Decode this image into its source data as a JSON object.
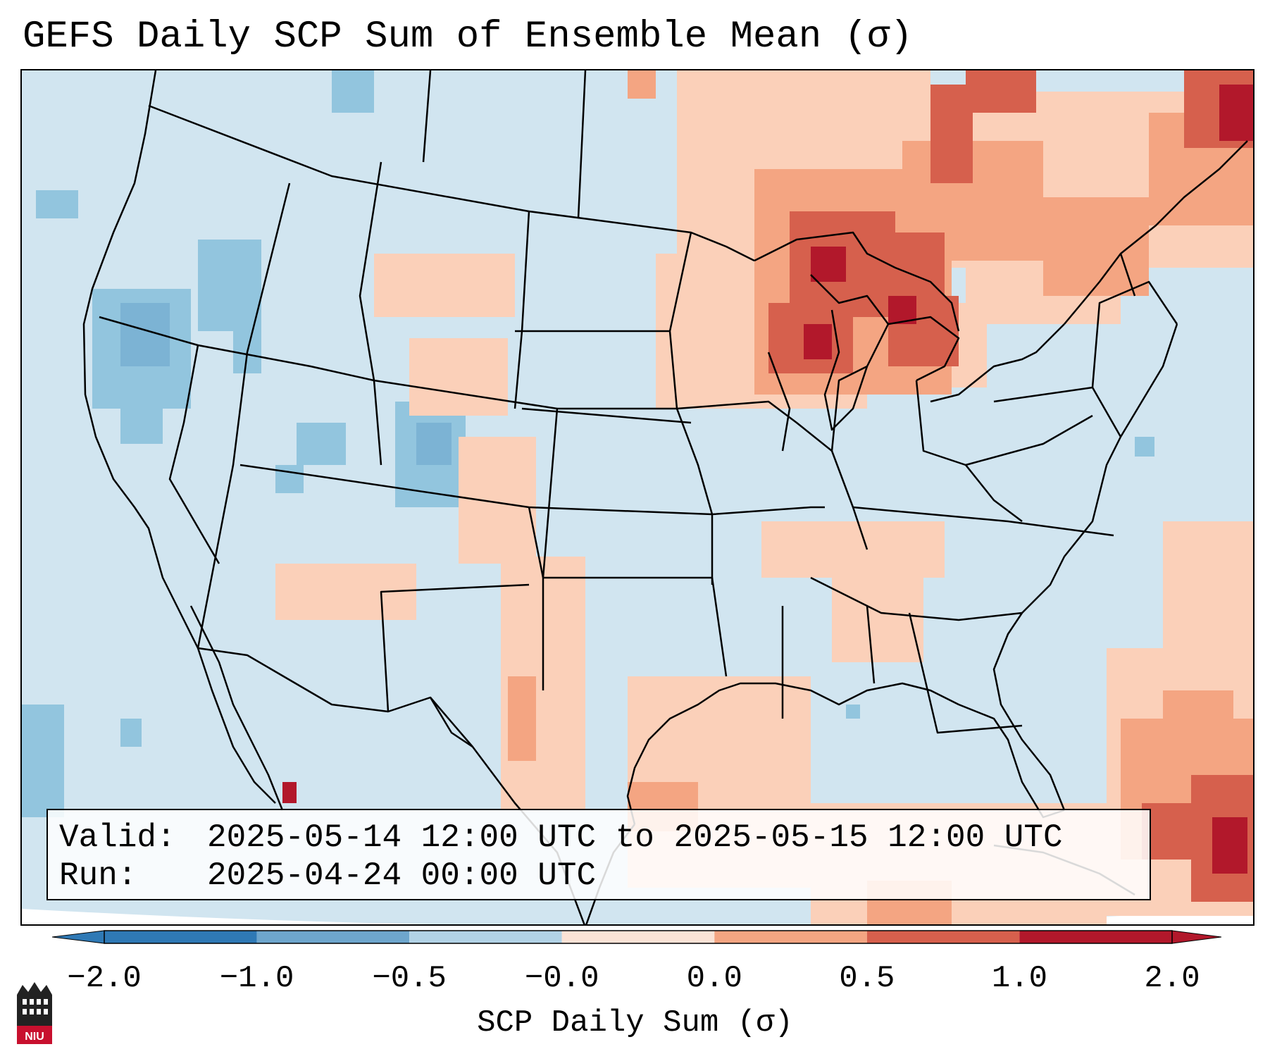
{
  "title": "GEFS Daily SCP Sum of Ensemble Mean (σ)",
  "info": {
    "valid_label": "Valid:",
    "valid_value": "2025-05-14 12:00 UTC to 2025-05-15 12:00 UTC",
    "run_label": "Run:",
    "run_value": "2025-04-24 00:00 UTC"
  },
  "colorbar": {
    "label": "SCP Daily Sum (σ)",
    "ticks": [
      "−2.0",
      "−1.0",
      "−0.5",
      "−0.0",
      "0.0",
      "0.5",
      "1.0",
      "2.0"
    ],
    "colors": [
      "#2f79b5",
      "#6ea6cd",
      "#b2d3e6",
      "#eff3f6",
      "#fbe3d6",
      "#f4a582",
      "#d6604d",
      "#b2182b"
    ],
    "extend": "both"
  },
  "map": {
    "region": "Contiguous United States",
    "background_value_color": "#d1e5f0",
    "icons": [
      "state-borders",
      "coastlines"
    ]
  },
  "logo": {
    "text": "NIU"
  }
}
